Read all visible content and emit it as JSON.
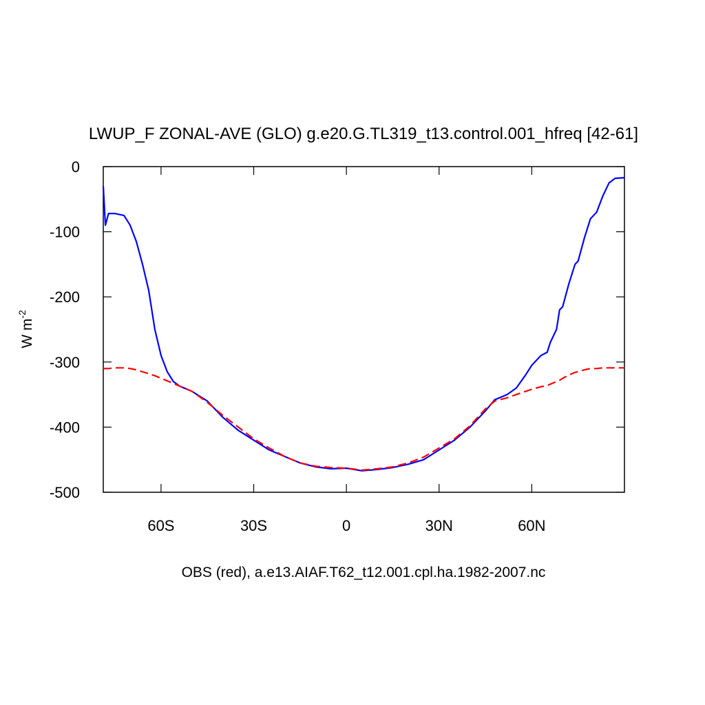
{
  "chart_data": {
    "type": "line",
    "title": "LWUP_F ZONAL-AVE (GLO) g.e20.G.TL319_t13.control.001_hfreq [42-61]",
    "footer": "OBS (red), a.e13.AIAF.T62_t12.001.cpl.ha.1982-2007.nc",
    "ylabel": {
      "text": "W m",
      "superscript": "-2"
    },
    "x": [
      -78.7,
      -78,
      -77,
      -75,
      -72,
      -70,
      -68,
      -66,
      -64,
      -62,
      -60,
      -58,
      -56,
      -54,
      -50,
      -45,
      -40,
      -35,
      -30,
      -25,
      -20,
      -15,
      -10,
      -5,
      0,
      5,
      10,
      15,
      20,
      25,
      30,
      35,
      40,
      45,
      48,
      52,
      55,
      58,
      60,
      63,
      65,
      66,
      68,
      69,
      70,
      72,
      74,
      75,
      77,
      79,
      81,
      83,
      85,
      87,
      90
    ],
    "series": [
      {
        "color": "#0000ff",
        "dashed": false,
        "values": [
          -30,
          -90,
          -72,
          -72,
          -75,
          -90,
          -115,
          -150,
          -190,
          -250,
          -290,
          -315,
          -330,
          -337,
          -345,
          -360,
          -385,
          -405,
          -420,
          -435,
          -445,
          -455,
          -461,
          -464,
          -463,
          -467,
          -465,
          -462,
          -457,
          -450,
          -435,
          -420,
          -400,
          -375,
          -358,
          -350,
          -340,
          -320,
          -305,
          -290,
          -285,
          -270,
          -250,
          -220,
          -215,
          -180,
          -150,
          -145,
          -110,
          -80,
          -70,
          -45,
          -25,
          -18,
          -17
        ]
      },
      {
        "color": "#ff0000",
        "dashed": true,
        "values": [
          -310,
          -310,
          -310,
          -309,
          -309,
          -310,
          -312,
          -315,
          -318,
          -321,
          -325,
          -329,
          -333,
          -337,
          -345,
          -362,
          -382,
          -400,
          -418,
          -432,
          -445,
          -455,
          -460,
          -462,
          -463,
          -466,
          -464,
          -461,
          -455,
          -446,
          -432,
          -418,
          -398,
          -372,
          -360,
          -355,
          -350,
          -345,
          -342,
          -338,
          -336,
          -334,
          -330,
          -328,
          -325,
          -320,
          -316,
          -315,
          -312,
          -310,
          -310,
          -309,
          -309,
          -309,
          -309
        ]
      }
    ],
    "xlim": [
      -78.7,
      90
    ],
    "xticks": [
      {
        "value": -60,
        "label": "60S"
      },
      {
        "value": -30,
        "label": "30S"
      },
      0,
      {
        "value": 30,
        "label": "30N"
      },
      {
        "value": 60,
        "label": "60N"
      }
    ],
    "ylim": [
      -500,
      0
    ],
    "yticks": [
      0,
      -100,
      -200,
      -300,
      -400,
      -500
    ]
  }
}
